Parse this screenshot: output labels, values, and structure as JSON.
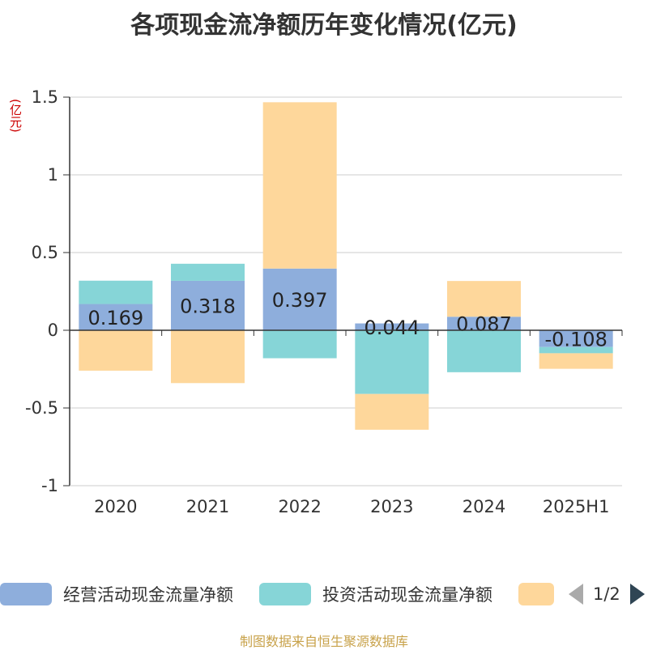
{
  "title": "各项现金流净额历年变化情况(亿元)",
  "unit_label": "(亿元)",
  "source": "制图数据来自恒生聚源数据库",
  "legend": {
    "items": [
      {
        "label": "经营活动现金流量净额",
        "color": "#8eaedc"
      },
      {
        "label": "投资活动现金流量净额",
        "color": "#86d5d7"
      },
      {
        "label": "",
        "color": "#fed79b"
      }
    ],
    "page_text": "1/2"
  },
  "chart_data": {
    "type": "bar",
    "stacked": true,
    "categories": [
      "2020",
      "2021",
      "2022",
      "2023",
      "2024",
      "2025H1"
    ],
    "ylim": [
      -1,
      1.5
    ],
    "yticks": [
      -1,
      -0.5,
      0,
      0.5,
      1,
      1.5
    ],
    "grid": true,
    "series": [
      {
        "name": "经营活动现金流量净额",
        "color": "#8eaedc",
        "values": [
          0.169,
          0.318,
          0.397,
          0.044,
          0.087,
          -0.108
        ],
        "labels": [
          "0.169",
          "0.318",
          "0.397",
          "0.044",
          "0.087",
          "-0.108"
        ]
      },
      {
        "name": "投资活动现金流量净额",
        "color": "#86d5d7",
        "values": [
          0.15,
          0.11,
          -0.18,
          -0.41,
          -0.27,
          -0.04
        ]
      },
      {
        "color": "#fed79b",
        "values": [
          -0.26,
          -0.34,
          1.07,
          -0.23,
          0.23,
          -0.1
        ]
      }
    ]
  }
}
